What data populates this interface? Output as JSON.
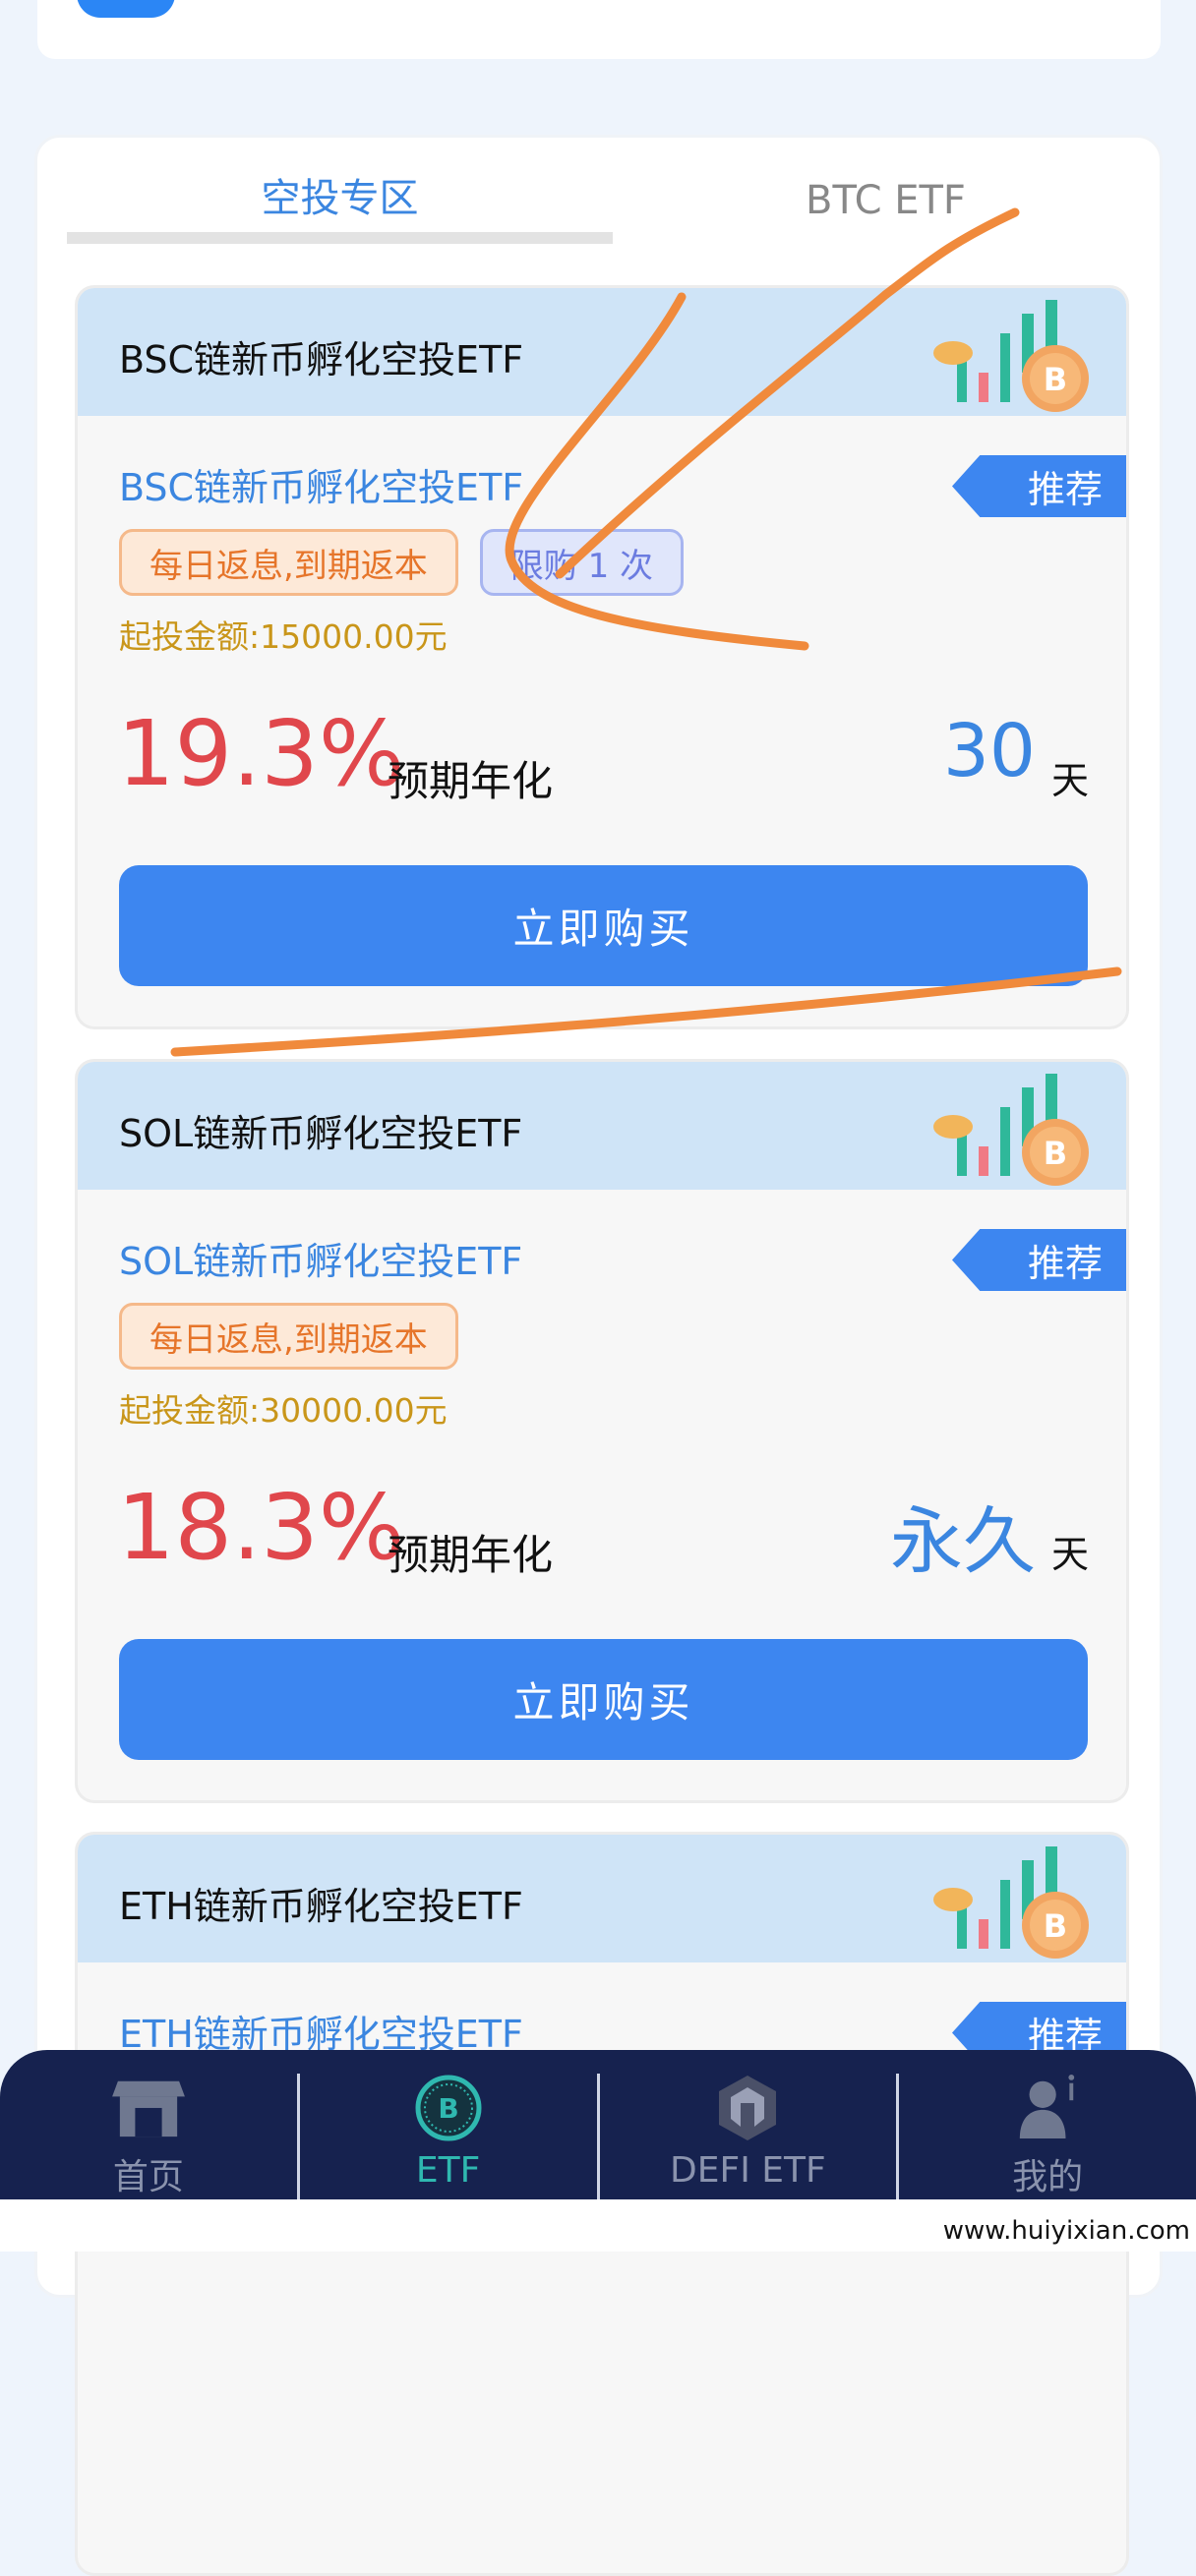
{
  "tabs": [
    {
      "label": "空投专区",
      "active": true
    },
    {
      "label": "BTC ETF",
      "active": false
    }
  ],
  "cards": [
    {
      "title": "BSC链新币孵化空投ETF",
      "subtitle": "BSC链新币孵化空投ETF",
      "badge": "推荐",
      "tags": [
        "每日返息,到期返本",
        "限购 1 次"
      ],
      "min_amount": "起投金额:15000.00元",
      "rate": "19.3%",
      "rate_label": "预期年化",
      "days": "30",
      "days_unit": "天",
      "buy_label": "立即购买"
    },
    {
      "title": "SOL链新币孵化空投ETF",
      "subtitle": "SOL链新币孵化空投ETF",
      "badge": "推荐",
      "tags": [
        "每日返息,到期返本"
      ],
      "min_amount": "起投金额:30000.00元",
      "rate": "18.3%",
      "rate_label": "预期年化",
      "days": "永久",
      "days_unit": "天",
      "buy_label": "立即购买"
    },
    {
      "title": "ETH链新币孵化空投ETF",
      "subtitle": "ETH链新币孵化空投ETF",
      "badge": "推荐"
    }
  ],
  "nav": [
    {
      "label": "首页",
      "icon": "store-icon"
    },
    {
      "label": "ETF",
      "icon": "bitcoin-icon",
      "active": true
    },
    {
      "label": "DEFI ETF",
      "icon": "hexagon-icon"
    },
    {
      "label": "我的",
      "icon": "user-icon"
    }
  ],
  "watermark": "www.huiyixian.com",
  "colors": {
    "accent": "#3d86f0",
    "rate": "#e0474c",
    "nav_bg": "#16224f",
    "annotation": "#f08a3c"
  }
}
